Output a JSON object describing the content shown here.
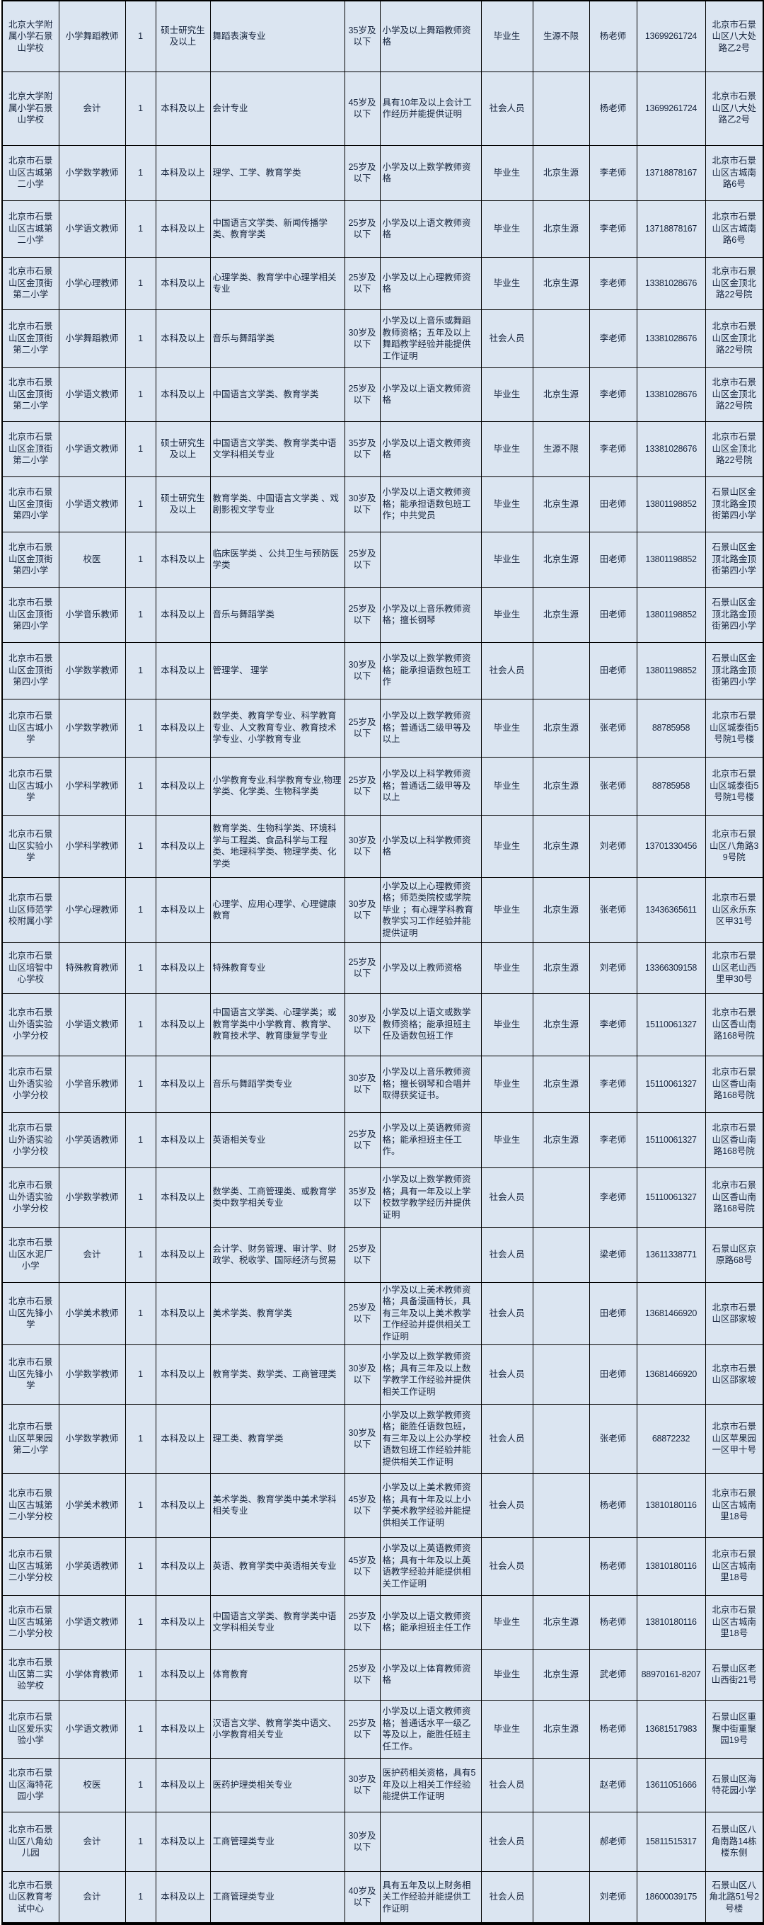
{
  "colors": {
    "page_bg": "#ffffff",
    "cell_bg": "#dbe5f1",
    "grid_line": "#000000",
    "text": "#16243d"
  },
  "table": {
    "rows": [
      [
        "北京大学附属小学石景山学校",
        "小学舞蹈教师",
        "1",
        "硕士研究生及以上",
        "舞蹈表演专业",
        "35岁及以下",
        "小学及以上舞蹈教师资格",
        "毕业生",
        "生源不限",
        "杨老师",
        "13699261724",
        "北京市石景山区八大处路乙2号"
      ],
      [
        "北京大学附属小学石景山学校",
        "会计",
        "1",
        "本科及以上",
        "会计专业",
        "45岁及以下",
        "具有10年及以上会计工作经历并能提供证明",
        "社会人员",
        "",
        "杨老师",
        "13699261724",
        "北京市石景山区八大处路乙2号"
      ],
      [
        "北京市石景山区古城第二小学",
        "小学数学教师",
        "1",
        "本科及以上",
        "理学、工学、教育学类",
        "25岁及以下",
        "小学及以上数学教师资格",
        "毕业生",
        "北京生源",
        "李老师",
        "13718878167",
        "北京市石景山区古城南路6号"
      ],
      [
        "北京市石景山区古城第二小学",
        "小学语文教师",
        "1",
        "本科及以上",
        "中国语言文学类、新闻传播学类、教育学类",
        "25岁及以下",
        "小学及以上语文教师资格",
        "毕业生",
        "北京生源",
        "李老师",
        "13718878167",
        "北京市石景山区古城南路6号"
      ],
      [
        "北京市石景山区金顶街第二小学",
        "小学心理教师",
        "1",
        "本科及以上",
        "心理学类、教育学中心理学相关专业",
        "25岁及以下",
        "小学及以上心理教师资格",
        "毕业生",
        "北京生源",
        "李老师",
        "13381028676",
        "北京市石景山区金顶北路22号院"
      ],
      [
        "北京市石景山区金顶街第二小学",
        "小学舞蹈教师",
        "1",
        "本科及以上",
        "音乐与舞蹈学类",
        "30岁及以下",
        "小学及以上音乐或舞蹈教师资格；五年及以上舞蹈教学经验并能提供工作证明",
        "社会人员",
        "",
        "李老师",
        "13381028676",
        "北京市石景山区金顶北路22号院"
      ],
      [
        "北京市石景山区金顶街第二小学",
        "小学语文教师",
        "1",
        "本科及以上",
        "中国语言文学类、教育学类",
        "25岁及以下",
        "小学及以上语文教师资格",
        "毕业生",
        "北京生源",
        "李老师",
        "13381028676",
        "北京市石景山区金顶北路22号院"
      ],
      [
        "北京市石景山区金顶街第二小学",
        "小学语文教师",
        "1",
        "硕士研究生及以上",
        "中国语言文学类、教育学类中语文学科相关专业",
        "35岁及以下",
        "小学及以上语文教师资格",
        "毕业生",
        "生源不限",
        "李老师",
        "13381028676",
        "北京市石景山区金顶北路22号院"
      ],
      [
        "北京市石景山区金顶街第四小学",
        "小学语文教师",
        "1",
        "硕士研究生及以上",
        "教育学类、中国语言文学类 、戏剧影视文学专业",
        "30岁及以下",
        "小学及以上语文教师资格；能承担语数包班工作；中共党员",
        "毕业生",
        "北京生源",
        "田老师",
        "13801198852",
        "石景山区金顶北路金顶街第四小学"
      ],
      [
        "北京市石景山区金顶街第四小学",
        "校医",
        "1",
        "本科及以上",
        "临床医学类 、公共卫生与预防医学类",
        "25岁及以下",
        "",
        "毕业生",
        "北京生源",
        "田老师",
        "13801198852",
        "石景山区金顶北路金顶街第四小学"
      ],
      [
        "北京市石景山区金顶街第四小学",
        "小学音乐教师",
        "1",
        "本科及以上",
        "音乐与舞蹈学类",
        "25岁及以下",
        "小学及以上音乐教师资格；擅长钢琴",
        "毕业生",
        "北京生源",
        "田老师",
        "13801198852",
        "石景山区金顶北路金顶街第四小学"
      ],
      [
        "北京市石景山区金顶街第四小学",
        "小学数学教师",
        "1",
        "本科及以上",
        "管理学、 理学",
        "30岁及以下",
        "小学及以上数学教师资格；能承担语数包班工作",
        "社会人员",
        "",
        "田老师",
        "13801198852",
        "石景山区金顶北路金顶街第四小学"
      ],
      [
        "北京市石景山区古城小学",
        "小学数学教师",
        "1",
        "本科及以上",
        "数学类、教育学专业、科学教育专业、人文教育专业、教育技术学专业、小学教育专业",
        "25岁及以下",
        "小学及以上数学教师资格；普通话二级甲等及以上",
        "毕业生",
        "北京生源",
        "张老师",
        "88785958",
        "北京市石景山区城泰街5号院1号楼"
      ],
      [
        "北京市石景山区古城小学",
        "小学科学教师",
        "1",
        "本科及以上",
        "小学教育专业,科学教育专业,物理学类、化学类、生物科学类",
        "25岁及以下",
        "小学及以上科学教师资格；普通话二级甲等及以上",
        "毕业生",
        "北京生源",
        "张老师",
        "88785958",
        "北京市石景山区城泰街5号院1号楼"
      ],
      [
        "北京市石景山区实验小学",
        "小学科学教师",
        "1",
        "本科及以上",
        "教育学类、生物科学类、环境科学与工程类、食品科学与工程类、地理科学类、物理学类、化学类",
        "30岁及以下",
        "小学及以上科学教师资格",
        "毕业生",
        "北京生源",
        "刘老师",
        "13701330456",
        "北京市石景山区八角路39号院"
      ],
      [
        "北京市石景山区师范学校附属小学",
        "小学心理教师",
        "1",
        "本科及以上",
        "心理学、应用心理学、心理健康教育",
        "30岁及以下",
        "小学及以上心理教师资格；师范类院校或学院毕业 ；有心理学科教育教学实习工作经验并能提供证明",
        "毕业生",
        "北京生源",
        "张老师",
        "13436365611",
        "北京市石景山区永乐东区甲31号"
      ],
      [
        "北京市石景山区培智中心学校",
        "特殊教育教师",
        "1",
        "本科及以上",
        "特殊教育专业",
        "25岁及以下",
        "小学及以上教师资格",
        "毕业生",
        "北京生源",
        "刘老师",
        "13366309158",
        "北京市石景山区老山西里甲30号"
      ],
      [
        "北京市石景山外语实验小学分校",
        "小学语文教师",
        "1",
        "本科及以上",
        "中国语言文学类、心理学类；或教育学类中小学教育、教育学、教育技术学、教育康复学专业",
        "30岁及以下",
        "小学及以上语文或数学教师资格；能承担班主任及语数包班工作",
        "毕业生",
        "北京生源",
        "李老师",
        "15110061327",
        "北京市石景山区香山南路168号院"
      ],
      [
        "北京市石景山外语实验小学分校",
        "小学音乐教师",
        "1",
        "本科及以上",
        "音乐与舞蹈学类专业",
        "30岁及以下",
        "小学及以上音乐教师资格；擅长钢琴和合唱并取得获奖证书。",
        "毕业生",
        "北京生源",
        "李老师",
        "15110061327",
        "北京市石景山区香山南路168号院"
      ],
      [
        "北京市石景山外语实验小学分校",
        "小学英语教师",
        "1",
        "本科及以上",
        "英语相关专业",
        "25岁及以下",
        "小学及以上英语教师资格；能承担班主任工作。",
        "毕业生",
        "北京生源",
        "李老师",
        "15110061327",
        "北京市石景山区香山南路168号院"
      ],
      [
        "北京市石景山外语实验小学分校",
        "小学数学教师",
        "1",
        "本科及以上",
        "数学类、工商管理类、或教育学类中数学相关专业",
        "35岁及以下",
        "小学及以上数学教师资格；具有一年及以上学校数学教学经历并提供证明",
        "社会人员",
        "",
        "李老师",
        "15110061327",
        "北京市石景山区香山南路168号院"
      ],
      [
        "北京市石景山区水泥厂小学",
        "会计",
        "1",
        "本科及以上",
        "会计学、财务管理、审计学、财政学、税收学、国际经济与贸易",
        "25岁及以下",
        "",
        "社会人员",
        "",
        "梁老师",
        "13611338771",
        "石景山区京原路68号"
      ],
      [
        "北京市石景山区先锋小学",
        "小学美术教师",
        "1",
        "本科及以上",
        "美术学类、教育学类",
        "25岁及以下",
        "小学及以上美术教师资格；具备漫画特长，具有三年及以上美术教学工作经验并提供相关工作证明",
        "社会人员",
        "",
        "田老师",
        "13681466920",
        "北京市石景山区邵家坡"
      ],
      [
        "北京市石景山区先锋小学",
        "小学数学教师",
        "1",
        "本科及以上",
        "教育学类、数学类、工商管理类",
        "30岁及以下",
        "小学及以上数学教师资格；具有三年及以上数学教学工作经验并提供相关工作证明",
        "社会人员",
        "",
        "田老师",
        "13681466920",
        "北京市石景山区邵家坡"
      ],
      [
        "北京市石景山区苹果园第二小学",
        "小学数学教师",
        "1",
        "本科及以上",
        "理工类、教育学类",
        "30岁及以下",
        "小学及以上数学教师资格；能胜任语数包班，有三年及以上公办学校语数包班工作经验并能提供相关工作证明",
        "社会人员",
        "",
        "张老师",
        "68872232",
        "北京市石景山区苹果园一区甲十号"
      ],
      [
        "北京市石景山区古城第二小学分校",
        "小学美术教师",
        "1",
        "本科及以上",
        "美术学类、教育学类中美术学科相关专业",
        "45岁及以下",
        "小学及以上美术教师资格；具有十年及以上小学美术教学经验并能提供相关工作证明",
        "社会人员",
        "",
        "杨老师",
        "13810180116",
        "北京市石景山区古城南里18号"
      ],
      [
        "北京市石景山区古城第二小学分校",
        "小学英语教师",
        "1",
        "本科及以上",
        "英语、教育学类中英语相关专业",
        "45岁及以下",
        "小学及以上英语教师资格；具有十年及以上英语教学经验并能提供相关工作证明",
        "社会人员",
        "",
        "杨老师",
        "13810180116",
        "北京市石景山区古城南里18号"
      ],
      [
        "北京市石景山区古城第二小学分校",
        "小学语文教师",
        "1",
        "本科及以上",
        "中国语言文学类、教育学类中语文学科相关专业",
        "25岁及以下",
        "小学及以上语文教师资格；能承担班主任工作",
        "毕业生",
        "北京生源",
        "杨老师",
        "13810180116",
        "北京市石景山区古城南里18号"
      ],
      [
        "北京市石景山区第二实验学校",
        "小学体育教师",
        "1",
        "本科及以上",
        "体育教育",
        "25岁及以下",
        "小学及以上体育教师资格",
        "毕业生",
        "北京生源",
        "武老师",
        "88970161-8207",
        "石景山区老山西街21号"
      ],
      [
        "北京市石景山区爱乐实验小学",
        "小学语文教师",
        "1",
        "本科及以上",
        "汉语言文学、教育学类中语文、小学教育相关专业",
        "25岁及以下",
        "小学及以上语文教师资格；普通话水平一级乙等及以上，能胜任班主任工作。",
        "毕业生",
        "北京生源",
        "杨老师",
        "13681517983",
        "石景山区重聚中街重聚园19号"
      ],
      [
        "北京市石景山区海特花园小学",
        "校医",
        "1",
        "本科及以上",
        "医药护理类相关专业",
        "30岁及以下",
        "医护药相关资格，具有5年及以上相关工作经验能提供工作证明",
        "社会人员",
        "",
        "赵老师",
        "13611051666",
        "石景山区海特花园小学"
      ],
      [
        "北京市石景山区八角幼儿园",
        "会计",
        "1",
        "本科及以上",
        "工商管理类专业",
        "30岁及以下",
        "",
        "社会人员",
        "",
        "郝老师",
        "15811515317",
        "石景山区八角南路14栋楼东侧"
      ],
      [
        "北京市石景山区教育考试中心",
        "会计",
        "1",
        "本科及以上",
        "工商管理类专业",
        "40岁及以下",
        "具有五年及以上财务相关工作经验并能提供工作证明",
        "社会人员",
        "",
        "刘老师",
        "18600039175",
        "石景山区八角北路51号2号楼"
      ]
    ]
  }
}
